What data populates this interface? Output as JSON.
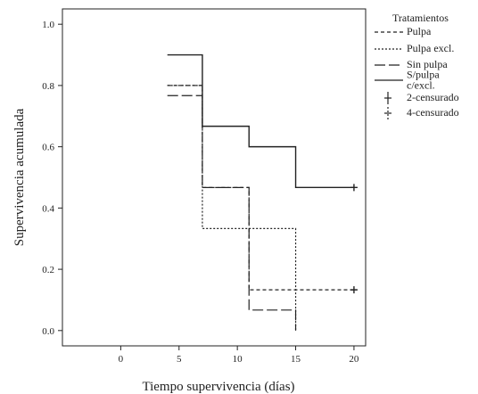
{
  "chart_data": {
    "type": "line",
    "step": true,
    "xlabel": "Tiempo supervivencia (días)",
    "ylabel": "Supervivencia acumulada",
    "xlim": [
      -5,
      21
    ],
    "ylim": [
      -0.05,
      1.05
    ],
    "xticks": [
      0,
      5,
      10,
      15,
      20
    ],
    "yticks": [
      0.0,
      0.2,
      0.4,
      0.6,
      0.8,
      1.0
    ],
    "xtick_labels": [
      "0",
      "5",
      "10",
      "15",
      "20"
    ],
    "ytick_labels": [
      "0.0",
      "0.2",
      "0.4",
      "0.6",
      "0.8",
      "1.0"
    ],
    "grid": false,
    "legend": {
      "title": "Tratamientos",
      "placement": "right",
      "entries": [
        {
          "label": "Pulpa",
          "style": "dash-short"
        },
        {
          "label": "Pulpa excl.",
          "style": "dotted"
        },
        {
          "label": "Sin pulpa",
          "style": "dash-long"
        },
        {
          "label": "S/pulpa c/excl.",
          "style": "solid"
        },
        {
          "label": "2-censurado",
          "style": "censor-plus"
        },
        {
          "label": "4-censurado",
          "style": "censor-plus-dashed"
        }
      ]
    },
    "series": [
      {
        "name": "Pulpa",
        "style": "dash-short",
        "x": [
          4,
          7,
          11,
          15
        ],
        "y": [
          0.8,
          0.467,
          0.133,
          0.133
        ],
        "end_x": 20
      },
      {
        "name": "Pulpa excl.",
        "style": "dotted",
        "x": [
          4,
          7,
          15
        ],
        "y": [
          0.8,
          0.333,
          0.0
        ],
        "end_x": 15
      },
      {
        "name": "Sin pulpa",
        "style": "dash-long",
        "x": [
          4,
          7,
          11,
          15
        ],
        "y": [
          0.767,
          0.467,
          0.067,
          0.0
        ],
        "end_x": 15
      },
      {
        "name": "S/pulpa c/excl.",
        "style": "solid",
        "x": [
          4,
          7,
          11,
          15
        ],
        "y": [
          0.9,
          0.667,
          0.6,
          0.467
        ],
        "end_x": 20
      }
    ],
    "censored": [
      {
        "series": "S/pulpa c/excl.",
        "x": 20,
        "y": 0.467
      },
      {
        "series": "Pulpa",
        "x": 20,
        "y": 0.133
      }
    ]
  }
}
